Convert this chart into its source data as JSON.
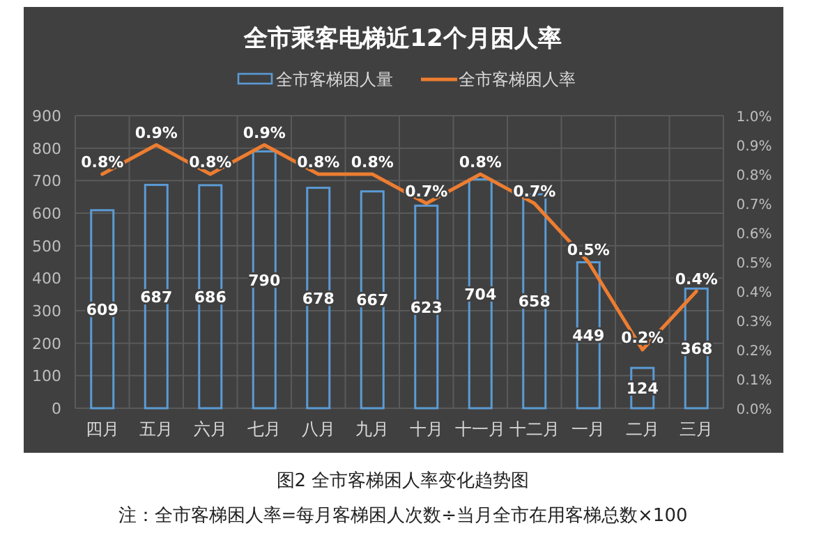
{
  "chart_data": {
    "type": "bar",
    "title": "全市乘客电梯近12个月困人率",
    "categories": [
      "四月",
      "五月",
      "六月",
      "七月",
      "八月",
      "九月",
      "十月",
      "十一月",
      "十二月",
      "一月",
      "二月",
      "三月"
    ],
    "series": [
      {
        "name": "全市客梯困人量",
        "color": "#5b9bd5",
        "values": [
          609,
          687,
          686,
          790,
          678,
          667,
          623,
          704,
          658,
          449,
          124,
          368
        ]
      },
      {
        "name": "全市客梯困人率",
        "type": "line",
        "axis": "y2",
        "color": "#ed7d31",
        "values": [
          0.8,
          0.9,
          0.8,
          0.9,
          0.8,
          0.8,
          0.7,
          0.8,
          0.7,
          0.5,
          0.2,
          0.4
        ],
        "value_labels": [
          "0.8%",
          "0.9%",
          "0.8%",
          "0.9%",
          "0.8%",
          "0.8%",
          "0.7%",
          "0.8%",
          "0.7%",
          "0.5%",
          "0.2%",
          "0.4%"
        ]
      }
    ],
    "ylim": [
      0,
      900
    ],
    "yticks": [
      0,
      100,
      200,
      300,
      400,
      500,
      600,
      700,
      800,
      900
    ],
    "y2lim": [
      0,
      1.0
    ],
    "y2ticks": [
      {
        "value": 0,
        "label": "0.0%"
      },
      {
        "value": 0.1,
        "label": "0.1%"
      },
      {
        "value": 0.2,
        "label": "0.2%"
      },
      {
        "value": 0.3,
        "label": "0.3%"
      },
      {
        "value": 0.4,
        "label": "0.4%"
      },
      {
        "value": 0.5,
        "label": "0.5%"
      },
      {
        "value": 0.6,
        "label": "0.6%"
      },
      {
        "value": 0.7,
        "label": "0.7%"
      },
      {
        "value": 0.8,
        "label": "0.8%"
      },
      {
        "value": 0.9,
        "label": "0.9%"
      },
      {
        "value": 1.0,
        "label": "1.0%"
      }
    ],
    "grid": true,
    "legend": "top",
    "data_labels": true,
    "annotations": [
      "图2 全市客梯困人率变化趋势图",
      "注：全市客梯困人率=每月客梯困人次数÷当月全市在用客梯总数×100"
    ]
  }
}
